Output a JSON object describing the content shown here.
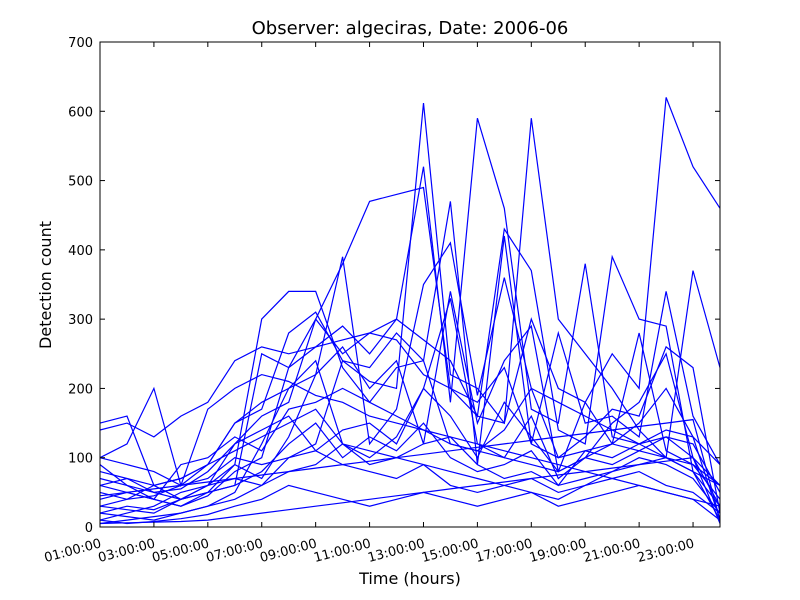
{
  "chart_data": {
    "type": "line",
    "title": "Observer: algeciras, Date: 2006-06",
    "xlabel": "Time (hours)",
    "ylabel": "Detection count",
    "x": [
      1,
      2,
      3,
      4,
      5,
      6,
      7,
      8,
      9,
      10,
      11,
      12,
      13,
      14,
      15,
      16,
      17,
      18,
      19,
      20,
      21,
      22,
      23,
      24
    ],
    "xlim": [
      1,
      24
    ],
    "ylim": [
      0,
      700
    ],
    "x_ticks": [
      1,
      3,
      5,
      7,
      9,
      11,
      13,
      15,
      17,
      19,
      21,
      23
    ],
    "x_tick_labels": [
      "01:00:00",
      "03:00:00",
      "05:00:00",
      "07:00:00",
      "09:00:00",
      "11:00:00",
      "13:00:00",
      "15:00:00",
      "17:00:00",
      "19:00:00",
      "21:00:00",
      "23:00:00"
    ],
    "y_ticks": [
      0,
      100,
      200,
      300,
      400,
      500,
      600,
      700
    ],
    "y_tick_labels": [
      "0",
      "100",
      "200",
      "300",
      "400",
      "500",
      "600",
      "700"
    ],
    "grid": false,
    "line_color": "#0000ff",
    "series": [
      {
        "values": [
          150,
          160,
          60,
          40,
          60,
          120,
          160,
          180,
          300,
          380,
          470,
          480,
          490,
          200,
          160,
          150,
          590,
          300,
          250,
          200,
          140,
          100,
          80,
          60
        ]
      },
      {
        "values": [
          100,
          90,
          80,
          60,
          90,
          150,
          170,
          280,
          310,
          240,
          210,
          200,
          612,
          220,
          200,
          150,
          300,
          200,
          180,
          250,
          200,
          620,
          520,
          460
        ]
      },
      {
        "values": [
          60,
          50,
          40,
          30,
          45,
          80,
          100,
          230,
          260,
          290,
          250,
          300,
          520,
          180,
          590,
          460,
          170,
          150,
          380,
          130,
          120,
          100,
          370,
          230
        ]
      },
      {
        "values": [
          20,
          30,
          25,
          40,
          50,
          90,
          70,
          130,
          220,
          390,
          120,
          170,
          350,
          410,
          190,
          360,
          200,
          180,
          160,
          140,
          120,
          140,
          130,
          90
        ]
      },
      {
        "values": [
          140,
          150,
          130,
          160,
          180,
          240,
          260,
          250,
          260,
          270,
          280,
          300,
          270,
          240,
          160,
          430,
          370,
          140,
          120,
          390,
          300,
          290,
          80,
          30
        ]
      },
      {
        "values": [
          10,
          20,
          30,
          50,
          60,
          90,
          300,
          340,
          340,
          230,
          180,
          230,
          240,
          470,
          90,
          420,
          120,
          280,
          150,
          160,
          130,
          340,
          160,
          90
        ]
      },
      {
        "values": [
          5,
          10,
          15,
          20,
          30,
          50,
          120,
          200,
          220,
          260,
          200,
          240,
          120,
          340,
          150,
          240,
          290,
          80,
          100,
          120,
          280,
          110,
          90,
          40
        ]
      },
      {
        "values": [
          80,
          70,
          60,
          70,
          90,
          150,
          180,
          200,
          240,
          120,
          100,
          130,
          200,
          330,
          120,
          100,
          160,
          70,
          100,
          150,
          180,
          250,
          100,
          30
        ]
      },
      {
        "values": [
          40,
          50,
          40,
          90,
          100,
          130,
          110,
          170,
          180,
          200,
          180,
          160,
          140,
          120,
          110,
          140,
          200,
          100,
          130,
          170,
          160,
          260,
          230,
          20
        ]
      },
      {
        "values": [
          30,
          25,
          20,
          40,
          50,
          60,
          80,
          120,
          150,
          100,
          130,
          110,
          150,
          100,
          80,
          90,
          110,
          60,
          110,
          120,
          150,
          200,
          130,
          10
        ]
      },
      {
        "values": [
          70,
          60,
          50,
          55,
          80,
          120,
          140,
          160,
          110,
          140,
          150,
          120,
          200,
          160,
          100,
          180,
          130,
          80,
          100,
          90,
          110,
          130,
          120,
          50
        ]
      },
      {
        "values": [
          20,
          15,
          10,
          20,
          30,
          40,
          60,
          80,
          90,
          120,
          90,
          100,
          120,
          130,
          90,
          70,
          80,
          60,
          70,
          80,
          90,
          100,
          80,
          10
        ]
      },
      {
        "values": [
          50,
          40,
          45,
          60,
          70,
          100,
          90,
          100,
          110,
          90,
          80,
          70,
          90,
          60,
          50,
          60,
          70,
          50,
          60,
          70,
          80,
          60,
          50,
          20
        ]
      },
      {
        "values": [
          10,
          5,
          8,
          12,
          18,
          30,
          40,
          60,
          50,
          40,
          30,
          40,
          50,
          40,
          30,
          40,
          50,
          30,
          40,
          50,
          60,
          50,
          40,
          10
        ]
      },
      {
        "values": [
          100,
          120,
          200,
          60,
          170,
          200,
          220,
          210,
          190,
          180,
          160,
          150,
          140,
          130,
          120,
          110,
          100,
          90,
          80,
          70,
          60,
          50,
          40,
          30
        ]
      },
      {
        "values": [
          90,
          60,
          40,
          30,
          50,
          60,
          250,
          230,
          300,
          250,
          280,
          270,
          220,
          200,
          180,
          230,
          120,
          100,
          110,
          100,
          120,
          130,
          100,
          60
        ]
      },
      {
        "values": [
          30,
          40,
          60,
          70,
          90,
          110,
          130,
          150,
          170,
          120,
          110,
          100,
          90,
          80,
          70,
          60,
          50,
          40,
          60,
          80,
          100,
          90,
          70,
          20
        ]
      },
      {
        "values": [
          60,
          70,
          50,
          40,
          60,
          70,
          60,
          100,
          120,
          240,
          230,
          280,
          240,
          120,
          110,
          100,
          90,
          80,
          180,
          120,
          110,
          100,
          90,
          60
        ]
      },
      {
        "values": [
          5,
          6,
          7,
          8,
          10,
          15,
          20,
          25,
          30,
          35,
          40,
          45,
          50,
          55,
          60,
          65,
          70,
          75,
          80,
          85,
          90,
          95,
          100,
          5
        ]
      },
      {
        "values": [
          45,
          50,
          55,
          60,
          65,
          70,
          75,
          80,
          85,
          90,
          95,
          100,
          105,
          110,
          115,
          120,
          125,
          130,
          135,
          140,
          145,
          150,
          155,
          10
        ]
      }
    ]
  }
}
